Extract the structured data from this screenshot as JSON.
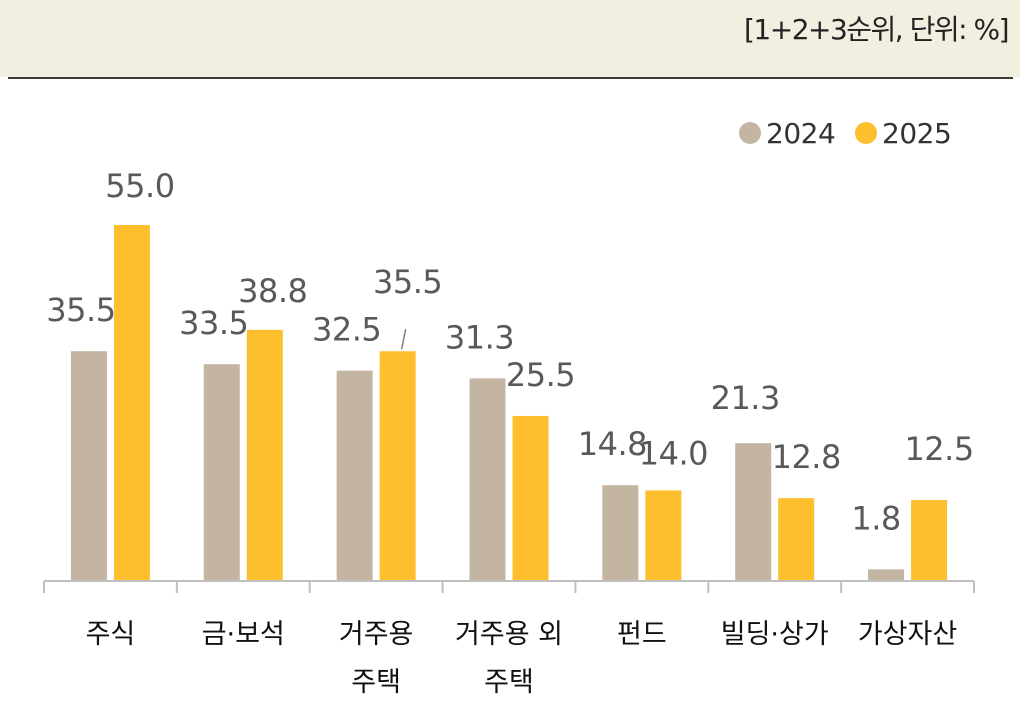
{
  "header": {
    "unit_note": "[1+2+3순위, 단위: %]"
  },
  "colors": {
    "series_2024": "#c4b5a2",
    "series_2025": "#fdbf2d",
    "axis": "#bfbfbf",
    "label": "#595959"
  },
  "chart_data": {
    "type": "bar",
    "categories": [
      [
        "주식"
      ],
      [
        "금·보석"
      ],
      [
        "거주용",
        "주택"
      ],
      [
        "거주용 외",
        "주택"
      ],
      [
        "펀드"
      ],
      [
        "빌딩·상가"
      ],
      [
        "가상자산"
      ]
    ],
    "series": [
      {
        "name": "2024",
        "values": [
          35.5,
          33.5,
          32.5,
          31.3,
          14.8,
          21.3,
          1.8
        ]
      },
      {
        "name": "2025",
        "values": [
          55.0,
          38.8,
          35.5,
          25.5,
          14.0,
          12.8,
          12.5
        ]
      }
    ],
    "ylim": [
      0,
      55
    ],
    "value_label_decimals": 1,
    "legend_position": "top-right",
    "grid": false
  }
}
